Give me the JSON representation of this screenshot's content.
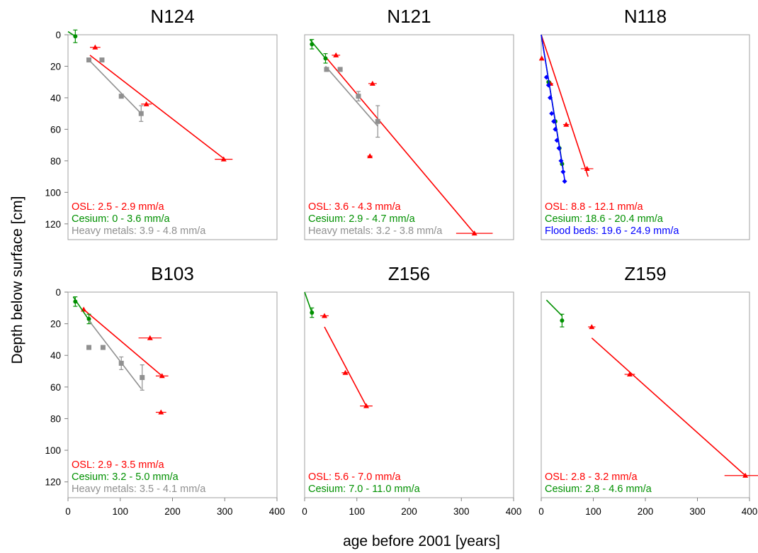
{
  "figure": {
    "xlabel": "age before 2001 [years]",
    "ylabel": "Depth below surface [cm]",
    "x_ticks": [
      "0",
      "100",
      "200",
      "300",
      "400"
    ],
    "y_ticks": [
      "0",
      "20",
      "40",
      "60",
      "80",
      "100",
      "120"
    ]
  },
  "colors": {
    "osl": "#ff0000",
    "cesium": "#009000",
    "metals": "#909090",
    "flood": "#0000ff"
  },
  "chart_data": [
    {
      "type": "scatter",
      "title": "N124",
      "xlim": [
        0,
        400
      ],
      "ylim": [
        130,
        0
      ],
      "y_inverted": true,
      "annotations": [
        {
          "color": "osl",
          "label": "OSL:",
          "value": "2.5 - 2.9 mm/a"
        },
        {
          "color": "cesium",
          "label": "Cesium:",
          "value": "0 - 3.6 mm/a"
        },
        {
          "color": "metals",
          "label": "Heavy metals:",
          "value": "3.9 - 4.8 mm/a"
        }
      ],
      "series": [
        {
          "color": "osl",
          "marker": "triangle",
          "points": [
            {
              "x": 52,
              "y": 8,
              "xerr": 10
            },
            {
              "x": 150,
              "y": 44,
              "xerr": 10
            },
            {
              "x": 298,
              "y": 79,
              "xerr": 17
            }
          ],
          "fit": [
            [
              42,
              13
            ],
            [
              300,
              79
            ]
          ]
        },
        {
          "color": "cesium",
          "marker": "circle",
          "points": [
            {
              "x": 14,
              "y": 1,
              "yerr": 4
            }
          ],
          "fit": [
            [
              0,
              -2
            ],
            [
              14,
              1
            ]
          ]
        },
        {
          "color": "metals",
          "marker": "square",
          "points": [
            {
              "x": 40,
              "y": 16
            },
            {
              "x": 65,
              "y": 16
            },
            {
              "x": 102,
              "y": 39
            },
            {
              "x": 140,
              "y": 50,
              "yerr": 5
            }
          ],
          "fit": [
            [
              40,
              16
            ],
            [
              140,
              50
            ]
          ]
        }
      ]
    },
    {
      "type": "scatter",
      "title": "N121",
      "xlim": [
        0,
        400
      ],
      "ylim": [
        130,
        0
      ],
      "y_inverted": true,
      "annotations": [
        {
          "color": "osl",
          "label": "OSL:",
          "value": "3.6 - 4.3 mm/a"
        },
        {
          "color": "cesium",
          "label": "Cesium:",
          "value": "2.9 - 4.7 mm/a"
        },
        {
          "color": "metals",
          "label": "Heavy metals:",
          "value": "3.2 - 3.8 mm/a"
        }
      ],
      "series": [
        {
          "color": "osl",
          "marker": "triangle",
          "points": [
            {
              "x": 60,
              "y": 13,
              "xerr": 8
            },
            {
              "x": 130,
              "y": 31,
              "xerr": 8
            },
            {
              "x": 125,
              "y": 77,
              "xerr": 5
            },
            {
              "x": 325,
              "y": 126,
              "xerr": 35
            }
          ],
          "fit": [
            [
              40,
              14
            ],
            [
              325,
              126
            ]
          ]
        },
        {
          "color": "cesium",
          "marker": "circle",
          "points": [
            {
              "x": 14,
              "y": 6,
              "yerr": 3
            },
            {
              "x": 40,
              "y": 15,
              "yerr": 3
            }
          ],
          "fit": [
            [
              10,
              3
            ],
            [
              40,
              15
            ]
          ]
        },
        {
          "color": "metals",
          "marker": "square",
          "points": [
            {
              "x": 42,
              "y": 22
            },
            {
              "x": 68,
              "y": 22
            },
            {
              "x": 103,
              "y": 39,
              "yerr": 3
            },
            {
              "x": 140,
              "y": 55,
              "yerr": 10
            }
          ],
          "fit": [
            [
              40,
              20
            ],
            [
              140,
              58
            ]
          ]
        }
      ]
    },
    {
      "type": "scatter",
      "title": "N118",
      "xlim": [
        0,
        400
      ],
      "ylim": [
        130,
        0
      ],
      "y_inverted": true,
      "annotations": [
        {
          "color": "osl",
          "label": "OSL:",
          "value": "8.8 - 12.1 mm/a"
        },
        {
          "color": "cesium",
          "label": "Cesium:",
          "value": "18.6 - 20.4 mm/a"
        },
        {
          "color": "flood",
          "label": "Flood beds:",
          "value": "19.6 - 24.9 mm/a"
        }
      ],
      "series": [
        {
          "color": "osl",
          "marker": "triangle",
          "points": [
            {
              "x": 1,
              "y": 15,
              "xerr": 3
            },
            {
              "x": 18,
              "y": 31,
              "xerr": 5
            },
            {
              "x": 48,
              "y": 57,
              "xerr": 6
            },
            {
              "x": 88,
              "y": 85,
              "xerr": 12
            }
          ],
          "fit": [
            [
              0,
              0
            ],
            [
              90,
              90
            ]
          ]
        },
        {
          "color": "cesium",
          "marker": "circle",
          "points": [
            {
              "x": 14,
              "y": 30
            },
            {
              "x": 27,
              "y": 55
            },
            {
              "x": 35,
              "y": 72
            },
            {
              "x": 40,
              "y": 82
            }
          ],
          "fit": [
            [
              0,
              0
            ],
            [
              42,
              85
            ]
          ]
        },
        {
          "color": "flood",
          "marker": "diamond",
          "points": [
            {
              "x": 10,
              "y": 27
            },
            {
              "x": 14,
              "y": 32
            },
            {
              "x": 17,
              "y": 40
            },
            {
              "x": 20,
              "y": 50
            },
            {
              "x": 24,
              "y": 55
            },
            {
              "x": 27,
              "y": 60
            },
            {
              "x": 30,
              "y": 67
            },
            {
              "x": 34,
              "y": 72
            },
            {
              "x": 38,
              "y": 80
            },
            {
              "x": 42,
              "y": 87
            },
            {
              "x": 45,
              "y": 93
            }
          ],
          "fit": [
            [
              0,
              0
            ],
            [
              46,
              94
            ]
          ]
        }
      ]
    },
    {
      "type": "scatter",
      "title": "B103",
      "xlim": [
        0,
        400
      ],
      "ylim": [
        130,
        0
      ],
      "y_inverted": true,
      "annotations": [
        {
          "color": "osl",
          "label": "OSL:",
          "value": "2.9 - 3.5 mm/a"
        },
        {
          "color": "cesium",
          "label": "Cesium:",
          "value": "3.2 - 5.0 mm/a"
        },
        {
          "color": "metals",
          "label": "Heavy metals:",
          "value": "3.5 - 4.1 mm/a"
        }
      ],
      "series": [
        {
          "color": "osl",
          "marker": "triangle",
          "points": [
            {
              "x": 30,
              "y": 11
            },
            {
              "x": 157,
              "y": 29,
              "xerr": 22
            },
            {
              "x": 180,
              "y": 53,
              "xerr": 12
            },
            {
              "x": 178,
              "y": 76,
              "xerr": 10
            }
          ],
          "fit": [
            [
              30,
              11
            ],
            [
              180,
              53
            ]
          ]
        },
        {
          "color": "cesium",
          "marker": "circle",
          "points": [
            {
              "x": 14,
              "y": 6,
              "yerr": 3
            },
            {
              "x": 40,
              "y": 17,
              "yerr": 3
            }
          ],
          "fit": [
            [
              10,
              3
            ],
            [
              45,
              20
            ]
          ]
        },
        {
          "color": "metals",
          "marker": "square",
          "points": [
            {
              "x": 40,
              "y": 35
            },
            {
              "x": 67,
              "y": 35
            },
            {
              "x": 102,
              "y": 45,
              "yerr": 4
            },
            {
              "x": 142,
              "y": 54,
              "yerr": 8
            }
          ],
          "fit": [
            [
              40,
              18
            ],
            [
              140,
              61
            ]
          ]
        }
      ]
    },
    {
      "type": "scatter",
      "title": "Z156",
      "xlim": [
        0,
        400
      ],
      "ylim": [
        130,
        0
      ],
      "y_inverted": true,
      "annotations": [
        {
          "color": "osl",
          "label": "OSL:",
          "value": "5.6 - 7.0 mm/a"
        },
        {
          "color": "cesium",
          "label": "Cesium:",
          "value": "7.0 - 11.0 mm/a"
        }
      ],
      "series": [
        {
          "color": "osl",
          "marker": "triangle",
          "points": [
            {
              "x": 38,
              "y": 15,
              "xerr": 8
            },
            {
              "x": 78,
              "y": 51,
              "xerr": 7
            },
            {
              "x": 118,
              "y": 72,
              "xerr": 12
            }
          ],
          "fit": [
            [
              38,
              22
            ],
            [
              118,
              72
            ]
          ]
        },
        {
          "color": "cesium",
          "marker": "circle",
          "points": [
            {
              "x": 14,
              "y": 13,
              "yerr": 3
            }
          ],
          "fit": [
            [
              0,
              0
            ],
            [
              14,
              13
            ]
          ]
        }
      ]
    },
    {
      "type": "scatter",
      "title": "Z159",
      "xlim": [
        0,
        400
      ],
      "ylim": [
        130,
        0
      ],
      "y_inverted": true,
      "annotations": [
        {
          "color": "osl",
          "label": "OSL:",
          "value": "2.8 - 3.2 mm/a"
        },
        {
          "color": "cesium",
          "label": "Cesium:",
          "value": "2.8 - 4.6 mm/a"
        }
      ],
      "series": [
        {
          "color": "osl",
          "marker": "triangle",
          "points": [
            {
              "x": 97,
              "y": 22,
              "xerr": 7
            },
            {
              "x": 170,
              "y": 52,
              "xerr": 10
            },
            {
              "x": 392,
              "y": 116,
              "xerr": 40
            }
          ],
          "fit": [
            [
              97,
              29
            ],
            [
              392,
              116
            ]
          ]
        },
        {
          "color": "cesium",
          "marker": "circle",
          "points": [
            {
              "x": 40,
              "y": 18,
              "yerr": 4
            }
          ],
          "fit": [
            [
              10,
              5
            ],
            [
              40,
              15
            ]
          ]
        }
      ]
    }
  ]
}
